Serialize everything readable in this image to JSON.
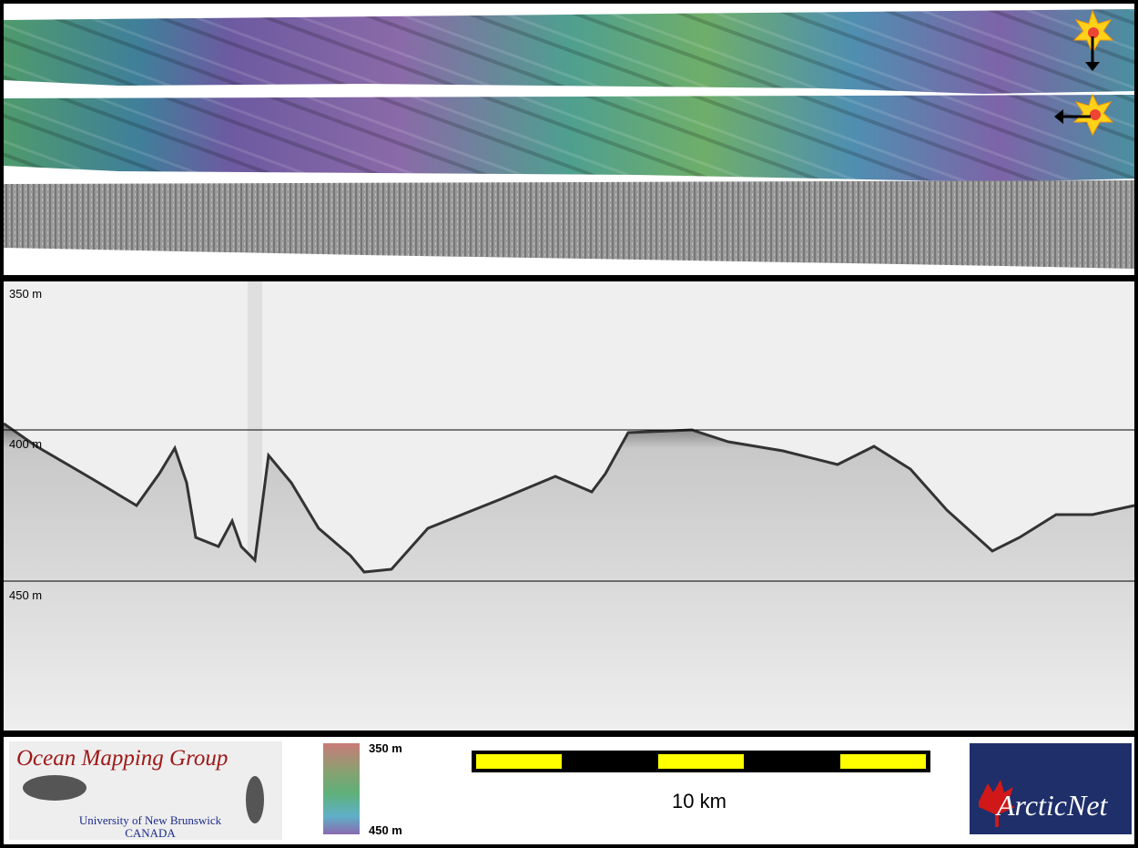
{
  "profile": {
    "depth_labels": [
      "350 m",
      "400 m",
      "450 m"
    ]
  },
  "colorbar": {
    "top_label": "350 m",
    "bottom_label": "450 m"
  },
  "scalebar": {
    "label": "10 km"
  },
  "logos": {
    "left": {
      "title": "Ocean Mapping Group",
      "line1": "University of New Brunswick",
      "line2": "CANADA"
    },
    "right": {
      "title": "ArcticNet"
    }
  }
}
